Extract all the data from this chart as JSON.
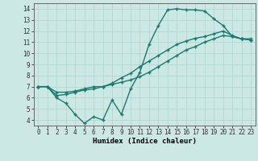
{
  "bg_color": "#cce8e4",
  "grid_color": "#aed4cf",
  "line_color": "#1a7a6e",
  "marker": "+",
  "markersize": 3.5,
  "linewidth": 1.0,
  "xlabel": "Humidex (Indice chaleur)",
  "xlim": [
    -0.5,
    23.5
  ],
  "ylim": [
    3.5,
    14.5
  ],
  "xticks": [
    0,
    1,
    2,
    3,
    4,
    5,
    6,
    7,
    8,
    9,
    10,
    11,
    12,
    13,
    14,
    15,
    16,
    17,
    18,
    19,
    20,
    21,
    22,
    23
  ],
  "yticks": [
    4,
    5,
    6,
    7,
    8,
    9,
    10,
    11,
    12,
    13,
    14
  ],
  "series": [
    [
      7.0,
      7.0,
      6.0,
      5.5,
      4.5,
      3.7,
      4.3,
      4.0,
      5.8,
      4.5,
      6.8,
      8.3,
      10.8,
      12.5,
      13.9,
      14.0,
      13.9,
      13.9,
      13.8,
      13.1,
      12.5,
      11.5,
      11.3,
      11.3
    ],
    [
      7.0,
      7.0,
      6.5,
      6.5,
      6.6,
      6.8,
      7.0,
      7.0,
      7.3,
      7.8,
      8.2,
      8.8,
      9.3,
      9.8,
      10.3,
      10.8,
      11.1,
      11.35,
      11.5,
      11.75,
      12.0,
      11.6,
      11.3,
      11.2
    ],
    [
      7.0,
      7.0,
      6.2,
      6.3,
      6.5,
      6.7,
      6.8,
      7.0,
      7.2,
      7.4,
      7.6,
      7.9,
      8.3,
      8.8,
      9.3,
      9.8,
      10.3,
      10.6,
      11.0,
      11.3,
      11.6,
      11.5,
      11.3,
      11.2
    ]
  ],
  "tick_fontsize": 5.5,
  "xlabel_fontsize": 6.5
}
